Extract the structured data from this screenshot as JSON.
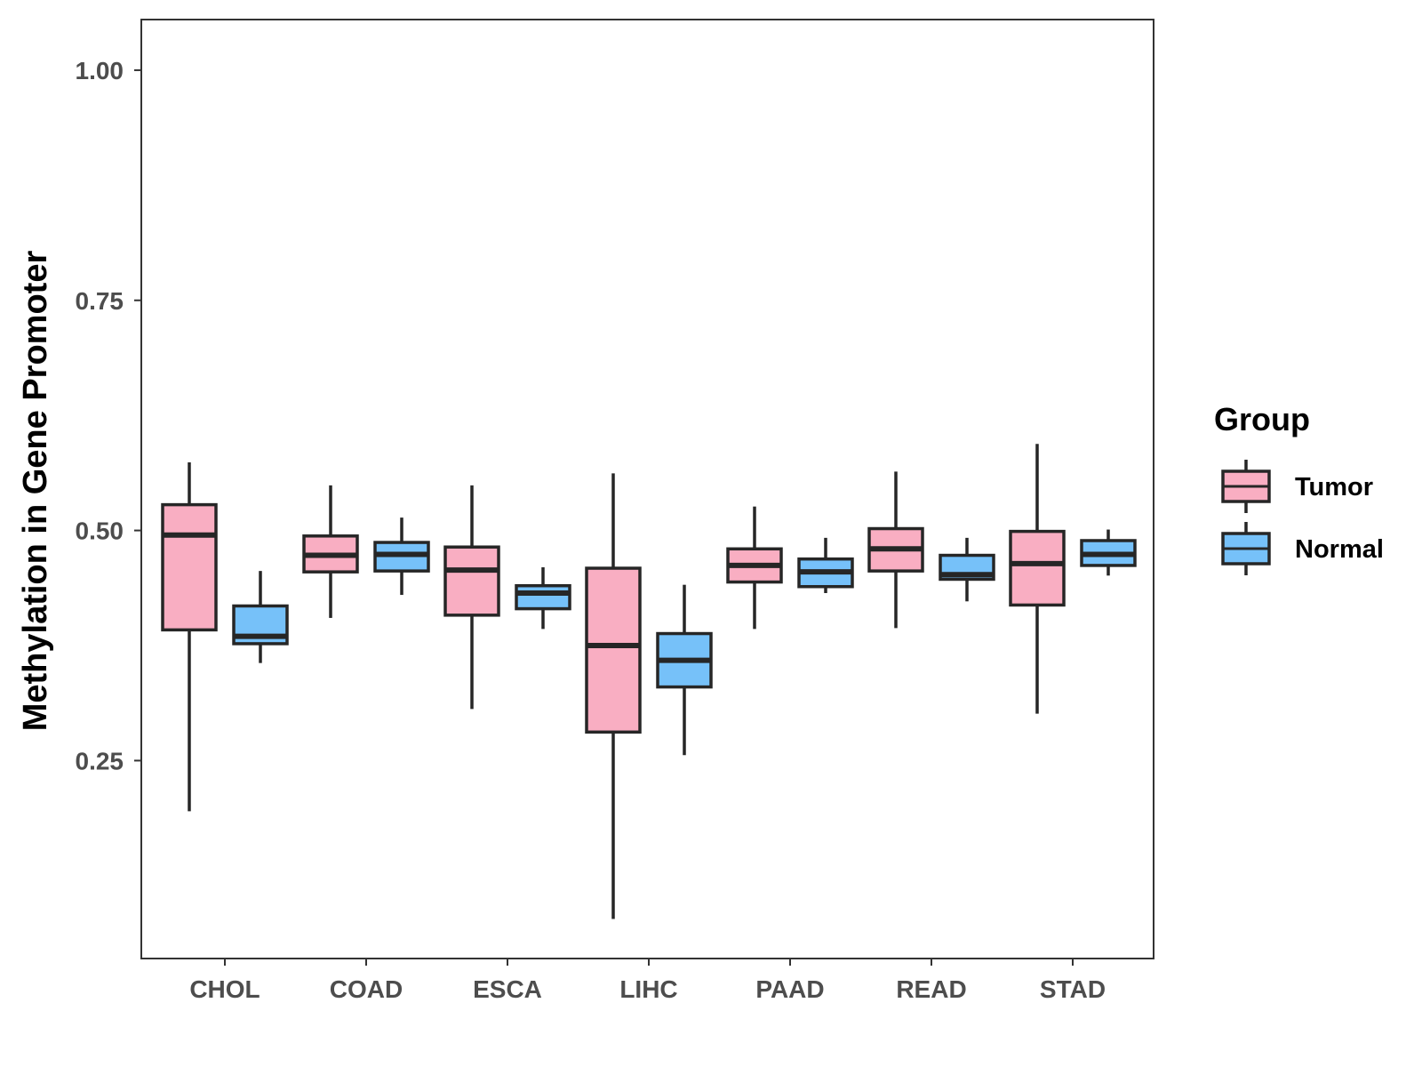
{
  "chart_data": {
    "type": "boxplot",
    "title": "",
    "xlabel": "",
    "ylabel": "Methylation in Gene Promoter",
    "ylim": [
      0.035,
      1.055
    ],
    "yticks": [
      "0.25",
      "0.50",
      "0.75",
      "1.00"
    ],
    "grid": false,
    "categories": [
      "CHOL",
      "COAD",
      "ESCA",
      "LIHC",
      "PAAD",
      "READ",
      "STAD"
    ],
    "legend": {
      "title": "Group",
      "position": "right"
    },
    "series": [
      {
        "name": "Tumor",
        "color": "#f9aec2",
        "boxes": [
          {
            "min": 0.195,
            "q1": 0.392,
            "median": 0.495,
            "q3": 0.528,
            "max": 0.574
          },
          {
            "min": 0.405,
            "q1": 0.455,
            "median": 0.473,
            "q3": 0.494,
            "max": 0.549
          },
          {
            "min": 0.306,
            "q1": 0.408,
            "median": 0.457,
            "q3": 0.482,
            "max": 0.549
          },
          {
            "min": 0.078,
            "q1": 0.281,
            "median": 0.375,
            "q3": 0.459,
            "max": 0.562
          },
          {
            "min": 0.393,
            "q1": 0.444,
            "median": 0.462,
            "q3": 0.48,
            "max": 0.526
          },
          {
            "min": 0.394,
            "q1": 0.456,
            "median": 0.48,
            "q3": 0.502,
            "max": 0.564
          },
          {
            "min": 0.301,
            "q1": 0.419,
            "median": 0.464,
            "q3": 0.499,
            "max": 0.594
          }
        ]
      },
      {
        "name": "Normal",
        "color": "#76c1f9",
        "boxes": [
          {
            "min": 0.356,
            "q1": 0.377,
            "median": 0.385,
            "q3": 0.418,
            "max": 0.456
          },
          {
            "min": 0.43,
            "q1": 0.456,
            "median": 0.474,
            "q3": 0.487,
            "max": 0.514
          },
          {
            "min": 0.393,
            "q1": 0.415,
            "median": 0.432,
            "q3": 0.44,
            "max": 0.46
          },
          {
            "min": 0.256,
            "q1": 0.33,
            "median": 0.359,
            "q3": 0.388,
            "max": 0.441
          },
          {
            "min": 0.432,
            "q1": 0.439,
            "median": 0.455,
            "q3": 0.469,
            "max": 0.492
          },
          {
            "min": 0.423,
            "q1": 0.447,
            "median": 0.452,
            "q3": 0.473,
            "max": 0.492
          },
          {
            "min": 0.451,
            "q1": 0.462,
            "median": 0.474,
            "q3": 0.489,
            "max": 0.501
          }
        ]
      }
    ]
  }
}
